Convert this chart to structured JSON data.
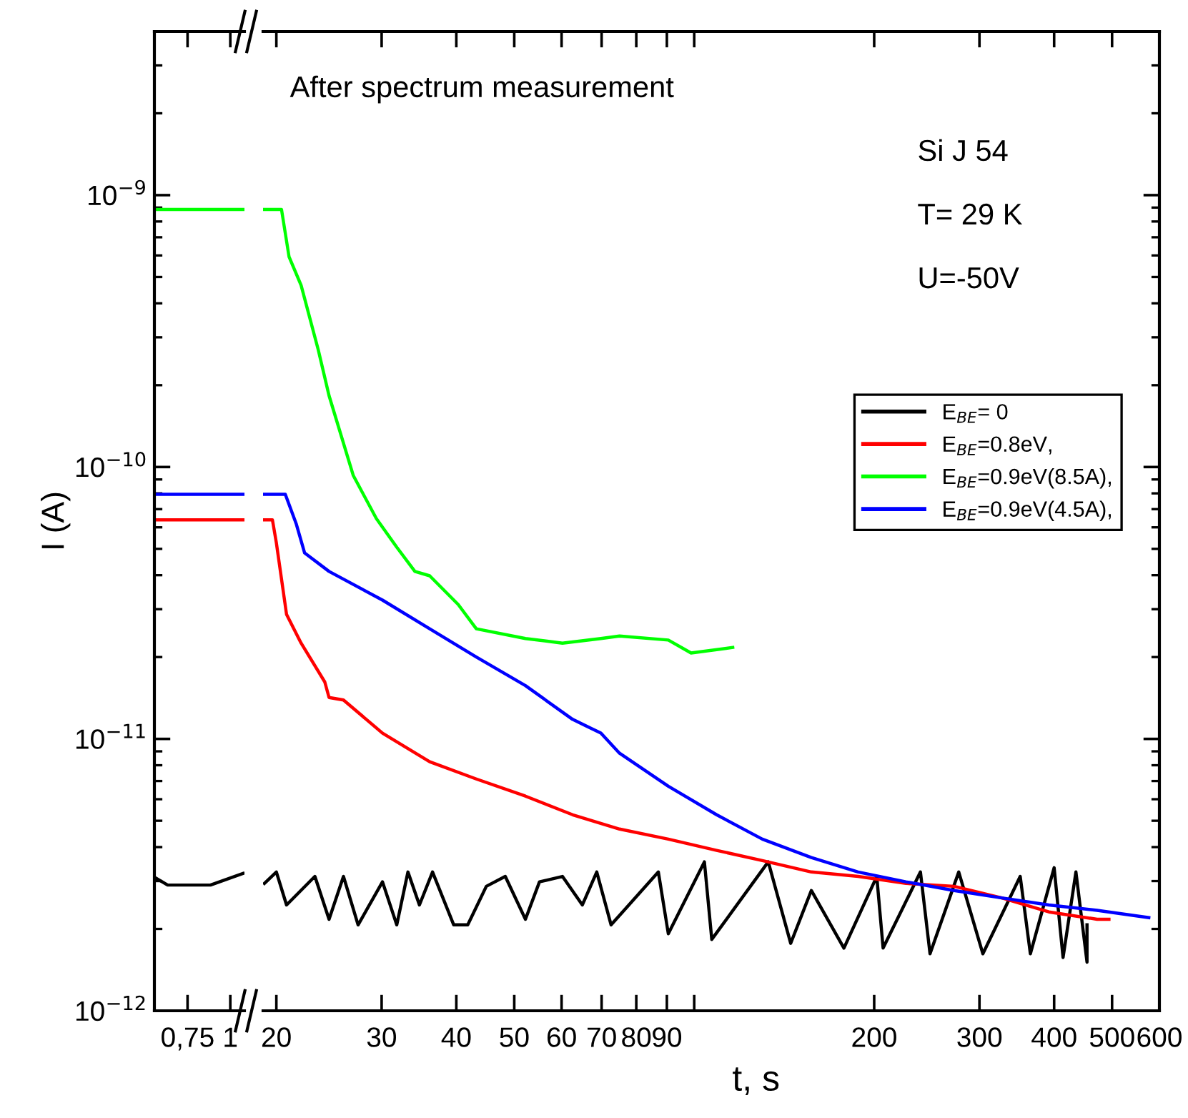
{
  "chart_data": [
    {
      "type": "line",
      "ylabel": "I (A)",
      "log": "xy",
      "xlim": [
        0.6,
        1.1
      ],
      "xticks": [
        {
          "value": 0.75,
          "label": "0,75"
        },
        1
      ],
      "ylim": [
        1e-12,
        4e-09
      ],
      "yticks": [
        {
          "value": 1e-12,
          "label": "10$^{−12}$"
        },
        {
          "value": 1e-11,
          "label": "10$^{−11}$"
        },
        {
          "value": 1e-10,
          "label": "10$^{−10}$"
        },
        {
          "value": 1e-09,
          "label": "10$^{−9}$"
        }
      ],
      "series": [
        {
          "color": "#000000",
          "x": [
            0.6,
            0.656,
            0.875,
            1.09
          ],
          "values": [
            3.1e-12,
            2.9e-12,
            2.9e-12,
            3.2e-12
          ]
        },
        {
          "color": "#ff0000",
          "x": [
            0.6,
            1.09
          ],
          "values": [
            6.39e-11,
            6.39e-11
          ]
        },
        {
          "color": "#00ff00",
          "x": [
            0.6,
            1.09
          ],
          "values": [
            8.86e-10,
            8.86e-10
          ]
        },
        {
          "color": "#0000ff",
          "x": [
            0.6,
            1.09
          ],
          "values": [
            7.94e-11,
            7.94e-11
          ]
        }
      ]
    },
    {
      "type": "line",
      "xlabel": "t, s",
      "log": "xy",
      "xlim": [
        19,
        600
      ],
      "ylim": [
        1e-12,
        4e-09
      ],
      "tick_labels": "x",
      "legend": "right",
      "xticks": [
        20,
        30,
        40,
        50,
        60,
        70,
        80,
        90,
        {
          "value": 100,
          "label": null
        },
        200,
        300,
        400,
        500,
        600
      ],
      "yticks": [
        {
          "value": 1e-12,
          "label": null
        },
        {
          "value": 1e-11,
          "label": null
        },
        {
          "value": 1e-10,
          "label": null
        },
        {
          "value": 1e-09,
          "label": null
        }
      ],
      "annotations": [
        "After spectrum measurement",
        "Si J 54",
        "T= 29 K",
        "U=-50V"
      ],
      "series": [
        {
          "name": "E$_{BE}$= 0",
          "color": "#000000",
          "x": [
            19.1,
            20.0,
            20.8,
            23.2,
            24.5,
            25.9,
            27.4,
            30.1,
            31.8,
            33.2,
            34.7,
            36.5,
            39.6,
            41.8,
            44.9,
            48.3,
            52.2,
            55.1,
            60.2,
            65.0,
            68.7,
            72.6,
            87.1,
            90.5,
            104.0,
            107.0,
            133.0,
            145.0,
            157.0,
            178.0,
            202.0,
            207.0,
            239.0,
            248.0,
            277.0,
            304.0,
            351.0,
            365.0,
            400.0,
            414.0,
            435.0,
            454.0,
            454.0
          ],
          "values": [
            2.94e-12,
            3.24e-12,
            2.45e-12,
            3.12e-12,
            2.17e-12,
            3.12e-12,
            2.07e-12,
            2.98e-12,
            2.07e-12,
            3.24e-12,
            2.45e-12,
            3.24e-12,
            2.07e-12,
            2.07e-12,
            2.87e-12,
            3.12e-12,
            2.17e-12,
            2.98e-12,
            3.12e-12,
            2.45e-12,
            3.24e-12,
            2.07e-12,
            3.24e-12,
            1.92e-12,
            3.53e-12,
            1.83e-12,
            3.53e-12,
            1.77e-12,
            2.77e-12,
            1.7e-12,
            3.12e-12,
            1.7e-12,
            3.24e-12,
            1.62e-12,
            3.24e-12,
            1.62e-12,
            3.12e-12,
            1.62e-12,
            3.36e-12,
            1.57e-12,
            3.24e-12,
            1.51e-12,
            2.07e-12
          ]
        },
        {
          "name": "E$_{BE}$=0.8eV,",
          "color": "#ff0000",
          "x": [
            19.0,
            19.7,
            20.0,
            20.8,
            22.0,
            24.1,
            24.5,
            25.9,
            30.1,
            36.1,
            43.2,
            52.2,
            62.6,
            75.0,
            90.5,
            109.0,
            130.0,
            157.0,
            188.0,
            226.0,
            272.0,
            327.0,
            392.0,
            472.0,
            494.0
          ],
          "values": [
            6.39e-11,
            6.39e-11,
            5.26e-11,
            2.87e-11,
            2.25e-11,
            1.62e-11,
            1.42e-11,
            1.39e-11,
            1.05e-11,
            8.24e-12,
            7.12e-12,
            6.16e-12,
            5.26e-12,
            4.66e-12,
            4.28e-12,
            3.89e-12,
            3.57e-12,
            3.24e-12,
            3.12e-12,
            2.94e-12,
            2.87e-12,
            2.6e-12,
            2.31e-12,
            2.17e-12,
            2.17e-12
          ]
        },
        {
          "name": "E$_{BE}$=0.9eV(8.5A),",
          "color": "#00ff00",
          "x": [
            19.0,
            20.4,
            21.0,
            22.0,
            23.5,
            24.5,
            26.9,
            29.4,
            31.8,
            34.1,
            36.1,
            40.3,
            43.2,
            52.2,
            60.2,
            69.8,
            75.0,
            90.5,
            98.8,
            116.0
          ],
          "values": [
            8.86e-10,
            8.86e-10,
            5.94e-10,
            4.66e-10,
            2.7e-10,
            1.83e-10,
            9.3e-11,
            6.46e-11,
            5.07e-11,
            4.13e-11,
            3.98e-11,
            3.12e-11,
            2.54e-11,
            2.34e-11,
            2.25e-11,
            2.34e-11,
            2.39e-11,
            2.31e-11,
            2.07e-11,
            2.17e-11
          ]
        },
        {
          "name": "E$_{BE}$=0.9eV(4.5A),",
          "color": "#0000ff",
          "x": [
            19.0,
            20.7,
            21.6,
            22.3,
            24.5,
            30.1,
            36.1,
            43.2,
            52.2,
            62.6,
            69.8,
            75.0,
            90.5,
            109.0,
            130.0,
            157.0,
            188.0,
            226.0,
            272.0,
            327.0,
            392.0,
            472.0,
            576.0
          ],
          "values": [
            7.94e-11,
            7.94e-11,
            6.16e-11,
            4.83e-11,
            4.13e-11,
            3.24e-11,
            2.54e-11,
            2e-11,
            1.57e-11,
            1.18e-11,
            1.05e-11,
            8.86e-12,
            6.7e-12,
            5.26e-12,
            4.28e-12,
            3.66e-12,
            3.24e-12,
            2.98e-12,
            2.77e-12,
            2.6e-12,
            2.45e-12,
            2.34e-12,
            2.2e-12
          ]
        }
      ]
    }
  ]
}
